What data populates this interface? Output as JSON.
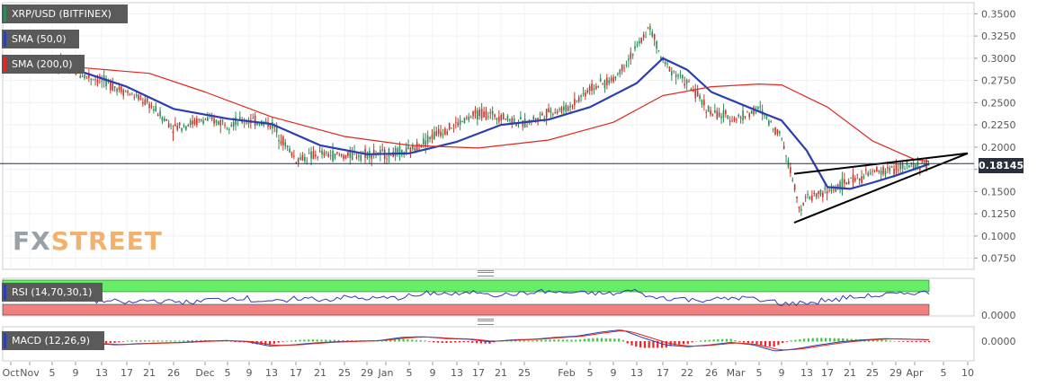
{
  "chart_data": {
    "type": "candlestick",
    "pair_label": "XRP/USD (BITFINEX)",
    "current_price_label": "0.18145",
    "current_price": 0.18145,
    "ylim": [
      0.0625,
      0.3625
    ],
    "y_ticks": [
      "0.3500",
      "0.3250",
      "0.3000",
      "0.2750",
      "0.2500",
      "0.2250",
      "0.2000",
      "0.1750",
      "0.1500",
      "0.1250",
      "0.1000",
      "0.0750"
    ],
    "y_tick_values": [
      0.35,
      0.325,
      0.3,
      0.275,
      0.25,
      0.225,
      0.2,
      0.175,
      0.15,
      0.125,
      0.1,
      0.075
    ],
    "x_ticks": [
      "Oct",
      "Nov",
      "5",
      "9",
      "13",
      "17",
      "21",
      "26",
      "Dec",
      "5",
      "9",
      "13",
      "17",
      "21",
      "25",
      "29",
      "Jan",
      "5",
      "9",
      "13",
      "17",
      "21",
      "25",
      "Feb",
      "5",
      "9",
      "13",
      "17",
      "22",
      "26",
      "Mar",
      "5",
      "9",
      "13",
      "17",
      "21",
      "25",
      "29",
      "Apr",
      "5",
      "10"
    ],
    "price_series": [
      {
        "date": "Oct 30",
        "close": 0.293
      },
      {
        "date": "Nov 5",
        "close": 0.297
      },
      {
        "date": "Nov 9",
        "close": 0.284
      },
      {
        "date": "Nov 13",
        "close": 0.275
      },
      {
        "date": "Nov 17",
        "close": 0.262
      },
      {
        "date": "Nov 21",
        "close": 0.248
      },
      {
        "date": "Nov 26",
        "close": 0.222
      },
      {
        "date": "Dec 1",
        "close": 0.231
      },
      {
        "date": "Dec 5",
        "close": 0.227
      },
      {
        "date": "Dec 9",
        "close": 0.23
      },
      {
        "date": "Dec 13",
        "close": 0.226
      },
      {
        "date": "Dec 17",
        "close": 0.186
      },
      {
        "date": "Dec 21",
        "close": 0.192
      },
      {
        "date": "Dec 25",
        "close": 0.19
      },
      {
        "date": "Dec 29",
        "close": 0.193
      },
      {
        "date": "Jan 1",
        "close": 0.192
      },
      {
        "date": "Jan 5",
        "close": 0.195
      },
      {
        "date": "Jan 9",
        "close": 0.213
      },
      {
        "date": "Jan 13",
        "close": 0.226
      },
      {
        "date": "Jan 17",
        "close": 0.238
      },
      {
        "date": "Jan 21",
        "close": 0.235
      },
      {
        "date": "Jan 25",
        "close": 0.226
      },
      {
        "date": "Jan 29",
        "close": 0.24
      },
      {
        "date": "Feb 1",
        "close": 0.243
      },
      {
        "date": "Feb 5",
        "close": 0.266
      },
      {
        "date": "Feb 9",
        "close": 0.276
      },
      {
        "date": "Feb 13",
        "close": 0.312
      },
      {
        "date": "Feb 15",
        "close": 0.335
      },
      {
        "date": "Feb 17",
        "close": 0.296
      },
      {
        "date": "Feb 22",
        "close": 0.272
      },
      {
        "date": "Feb 26",
        "close": 0.238
      },
      {
        "date": "Mar 1",
        "close": 0.232
      },
      {
        "date": "Mar 5",
        "close": 0.243
      },
      {
        "date": "Mar 9",
        "close": 0.212
      },
      {
        "date": "Mar 12",
        "close": 0.13
      },
      {
        "date": "Mar 13",
        "close": 0.143
      },
      {
        "date": "Mar 17",
        "close": 0.15
      },
      {
        "date": "Mar 21",
        "close": 0.162
      },
      {
        "date": "Mar 25",
        "close": 0.171
      },
      {
        "date": "Mar 29",
        "close": 0.176
      },
      {
        "date": "Apr 1",
        "close": 0.179
      },
      {
        "date": "Apr 3",
        "close": 0.181
      }
    ],
    "series": [
      {
        "name": "SMA (50,0)",
        "color": "#2a3fb0",
        "values": [
          {
            "date": "Oct 30",
            "value": 0.29
          },
          {
            "date": "Nov 9",
            "value": 0.287
          },
          {
            "date": "Nov 17",
            "value": 0.268
          },
          {
            "date": "Nov 26",
            "value": 0.243
          },
          {
            "date": "Dec 5",
            "value": 0.232
          },
          {
            "date": "Dec 13",
            "value": 0.226
          },
          {
            "date": "Dec 21",
            "value": 0.202
          },
          {
            "date": "Dec 29",
            "value": 0.192
          },
          {
            "date": "Jan 5",
            "value": 0.193
          },
          {
            "date": "Jan 13",
            "value": 0.206
          },
          {
            "date": "Jan 21",
            "value": 0.225
          },
          {
            "date": "Jan 29",
            "value": 0.231
          },
          {
            "date": "Feb 5",
            "value": 0.245
          },
          {
            "date": "Feb 13",
            "value": 0.272
          },
          {
            "date": "Feb 17",
            "value": 0.3
          },
          {
            "date": "Feb 22",
            "value": 0.287
          },
          {
            "date": "Feb 26",
            "value": 0.262
          },
          {
            "date": "Mar 5",
            "value": 0.24
          },
          {
            "date": "Mar 9",
            "value": 0.23
          },
          {
            "date": "Mar 13",
            "value": 0.196
          },
          {
            "date": "Mar 17",
            "value": 0.155
          },
          {
            "date": "Mar 21",
            "value": 0.153
          },
          {
            "date": "Mar 25",
            "value": 0.16
          },
          {
            "date": "Mar 29",
            "value": 0.168
          },
          {
            "date": "Apr 3",
            "value": 0.181
          }
        ]
      },
      {
        "name": "SMA (200,0)",
        "color": "#e0271f",
        "values": [
          {
            "date": "Oct 30",
            "value": 0.298
          },
          {
            "date": "Nov 9",
            "value": 0.29
          },
          {
            "date": "Nov 21",
            "value": 0.283
          },
          {
            "date": "Dec 1",
            "value": 0.262
          },
          {
            "date": "Dec 13",
            "value": 0.234
          },
          {
            "date": "Dec 25",
            "value": 0.212
          },
          {
            "date": "Jan 5",
            "value": 0.202
          },
          {
            "date": "Jan 17",
            "value": 0.199
          },
          {
            "date": "Jan 29",
            "value": 0.208
          },
          {
            "date": "Feb 9",
            "value": 0.228
          },
          {
            "date": "Feb 17",
            "value": 0.258
          },
          {
            "date": "Feb 26",
            "value": 0.268
          },
          {
            "date": "Mar 5",
            "value": 0.271
          },
          {
            "date": "Mar 9",
            "value": 0.27
          },
          {
            "date": "Mar 17",
            "value": 0.245
          },
          {
            "date": "Mar 25",
            "value": 0.207
          },
          {
            "date": "Apr 1",
            "value": 0.186
          },
          {
            "date": "Apr 3",
            "value": 0.184
          }
        ]
      }
    ],
    "trendlines": [
      {
        "name": "upper",
        "from": {
          "date": "Mar 11",
          "value": 0.17
        },
        "to": {
          "date": "Apr 10",
          "value": 0.193
        }
      },
      {
        "name": "lower",
        "from": {
          "date": "Mar 11",
          "value": 0.115
        },
        "to": {
          "date": "Apr 10",
          "value": 0.193
        }
      }
    ],
    "rsi": {
      "label": "RSI (14,70,30,1)",
      "overbought_color": "#66ee66",
      "oversold_color": "#f08080",
      "line_color": "#2a3fb0",
      "tick": "0.0000",
      "values": [
        55,
        52,
        48,
        45,
        42,
        46,
        44,
        43,
        48,
        51,
        46,
        44,
        50,
        48,
        52,
        50,
        51,
        55,
        60,
        58,
        62,
        57,
        59,
        63,
        61,
        60,
        59,
        64,
        52,
        50,
        47,
        49,
        51,
        45,
        40,
        42,
        47,
        52,
        55,
        58,
        61,
        60
      ]
    },
    "macd": {
      "label": "MACD (12,26,9)",
      "tick": "0.0000",
      "macd_color": "#2a3fb0",
      "signal_color": "#e0271f",
      "hist_pos_color": "#33cc33",
      "hist_neg_color": "#ee2222",
      "values": [
        0.002,
        0.001,
        0,
        -0.004,
        -0.006,
        -0.004,
        -0.003,
        -0.002,
        0,
        0.001,
        -0.001,
        -0.008,
        -0.006,
        -0.003,
        -0.001,
        0,
        0.001,
        0.006,
        0.007,
        0.004,
        0.003,
        -0.001,
        0.002,
        0.003,
        0.006,
        0.008,
        0.014,
        0.018,
        0.005,
        -0.006,
        -0.009,
        -0.006,
        -0.002,
        -0.006,
        -0.016,
        -0.012,
        -0.006,
        -0.001,
        0.002,
        0.004,
        0.003,
        0.002
      ]
    }
  },
  "legend": {
    "pair": "XRP/USD (BITFINEX)",
    "sma50": "SMA (50,0)",
    "sma200": "SMA (200,0)",
    "rsi": "RSI (14,70,30,1)",
    "macd": "MACD (12,26,9)"
  },
  "watermark": {
    "fx": "FX",
    "street": "STREET"
  },
  "colors": {
    "sma50": "#2a3fb0",
    "sma200": "#e0271f",
    "rsi_swatch": "#2a3fb0",
    "macd_swatch": "#2a3fb0",
    "pair_swatch": "#2e8b57",
    "up_candle": "#2e8b57",
    "down_candle": "#c0392b"
  }
}
